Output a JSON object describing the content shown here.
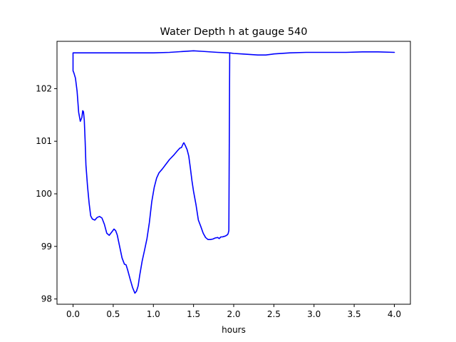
{
  "chart_data": {
    "type": "line",
    "title": "Water Depth h at gauge 540",
    "xlabel": "hours",
    "ylabel": "",
    "xlim": [
      -0.2,
      4.2
    ],
    "ylim": [
      97.9,
      102.9
    ],
    "grid": false,
    "xticks": [
      0.0,
      0.5,
      1.0,
      1.5,
      2.0,
      2.5,
      3.0,
      3.5,
      4.0
    ],
    "xtick_labels": [
      "0.0",
      "0.5",
      "1.0",
      "1.5",
      "2.0",
      "2.5",
      "3.0",
      "3.5",
      "4.0"
    ],
    "yticks": [
      98,
      99,
      100,
      101,
      102
    ],
    "ytick_labels": [
      "98",
      "99",
      "100",
      "101",
      "102"
    ],
    "series": [
      {
        "color": "#0000ff",
        "x": [
          1.94,
          1.8,
          1.6,
          1.5,
          1.2,
          1.0,
          0.5,
          0.0,
          0.0,
          0.01,
          0.03,
          0.05,
          0.07,
          0.09,
          0.11,
          0.12,
          0.13,
          0.14,
          0.15,
          0.16,
          0.18,
          0.2,
          0.22,
          0.24,
          0.27,
          0.3,
          0.33,
          0.36,
          0.39,
          0.42,
          0.45,
          0.48,
          0.51,
          0.53,
          0.55,
          0.58,
          0.61,
          0.64,
          0.66,
          0.68,
          0.71,
          0.74,
          0.77,
          0.79,
          0.81,
          0.83,
          0.86,
          0.89,
          0.92,
          0.95,
          0.98,
          1.01,
          1.04,
          1.07,
          1.11,
          1.15,
          1.2,
          1.25,
          1.3,
          1.33,
          1.35,
          1.37,
          1.38,
          1.4,
          1.42,
          1.44,
          1.46,
          1.48,
          1.5,
          1.53,
          1.56,
          1.59,
          1.62,
          1.65,
          1.68,
          1.71,
          1.74,
          1.77,
          1.8,
          1.82,
          1.84,
          1.86,
          1.88,
          1.9,
          1.92,
          1.93,
          1.94,
          1.95,
          2.0,
          2.1,
          2.2,
          2.3,
          2.4,
          2.5,
          2.7,
          2.9,
          3.0,
          3.2,
          3.4,
          3.6,
          3.7,
          3.8,
          4.0
        ],
        "y": [
          102.68,
          102.69,
          102.71,
          102.72,
          102.69,
          102.68,
          102.68,
          102.68,
          102.34,
          102.3,
          102.2,
          101.95,
          101.55,
          101.38,
          101.45,
          101.58,
          101.56,
          101.4,
          101.0,
          100.55,
          100.15,
          99.82,
          99.58,
          99.52,
          99.5,
          99.55,
          99.57,
          99.54,
          99.42,
          99.25,
          99.21,
          99.27,
          99.33,
          99.3,
          99.22,
          99.0,
          98.78,
          98.66,
          98.65,
          98.55,
          98.38,
          98.22,
          98.11,
          98.15,
          98.25,
          98.45,
          98.72,
          98.93,
          99.15,
          99.45,
          99.85,
          100.12,
          100.3,
          100.4,
          100.47,
          100.55,
          100.65,
          100.73,
          100.82,
          100.87,
          100.88,
          100.95,
          100.97,
          100.91,
          100.84,
          100.72,
          100.5,
          100.25,
          100.05,
          99.8,
          99.5,
          99.38,
          99.25,
          99.17,
          99.13,
          99.13,
          99.14,
          99.16,
          99.17,
          99.15,
          99.18,
          99.18,
          99.19,
          99.2,
          99.22,
          99.24,
          99.3,
          102.68,
          102.67,
          102.66,
          102.65,
          102.64,
          102.64,
          102.66,
          102.68,
          102.69,
          102.69,
          102.69,
          102.69,
          102.7,
          102.7,
          102.7,
          102.69
        ]
      }
    ]
  }
}
